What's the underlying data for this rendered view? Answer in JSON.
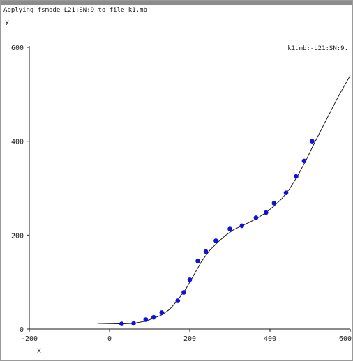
{
  "status": {
    "text": "Applying fsmode L21:SN:9 to file k1.mb!"
  },
  "chart_data": {
    "type": "line",
    "title": "",
    "xlabel": "x",
    "ylabel": "y",
    "xlim": [
      -200,
      600
    ],
    "ylim": [
      0,
      600
    ],
    "x_ticks": [
      -200,
      0,
      200,
      400,
      600
    ],
    "x_tick_labels": [
      "-200",
      "0",
      "200",
      "400",
      "600"
    ],
    "y_ticks": [
      0,
      200,
      400,
      600
    ],
    "y_tick_labels": [
      "0",
      "200",
      "400",
      "600"
    ],
    "grid": false,
    "legend": "top-right",
    "colors": {
      "line": "#1a1a1a",
      "points": "#1010e0",
      "axis": "#1a1a1a"
    },
    "series": [
      {
        "name": "k1.mb:-L21:SN:9.",
        "kind": "line",
        "x": [
          -30,
          30,
          60,
          90,
          110,
          130,
          150,
          170,
          190,
          210,
          230,
          250,
          270,
          290,
          310,
          330,
          350,
          370,
          390,
          410,
          430,
          450,
          470,
          490,
          510,
          540,
          570,
          600
        ],
        "y": [
          12,
          11,
          12,
          17,
          23,
          30,
          42,
          62,
          85,
          115,
          145,
          168,
          185,
          200,
          212,
          220,
          228,
          237,
          248,
          262,
          278,
          300,
          328,
          360,
          395,
          445,
          495,
          540
        ]
      },
      {
        "name": "",
        "kind": "points",
        "x": [
          30,
          60,
          90,
          110,
          130,
          170,
          185,
          200,
          220,
          240,
          265,
          300,
          330,
          365,
          390,
          410,
          440,
          465,
          485,
          505
        ],
        "y": [
          11,
          12,
          20,
          25,
          35,
          60,
          78,
          105,
          145,
          165,
          188,
          213,
          220,
          237,
          248,
          268,
          290,
          325,
          358,
          400
        ]
      }
    ]
  }
}
